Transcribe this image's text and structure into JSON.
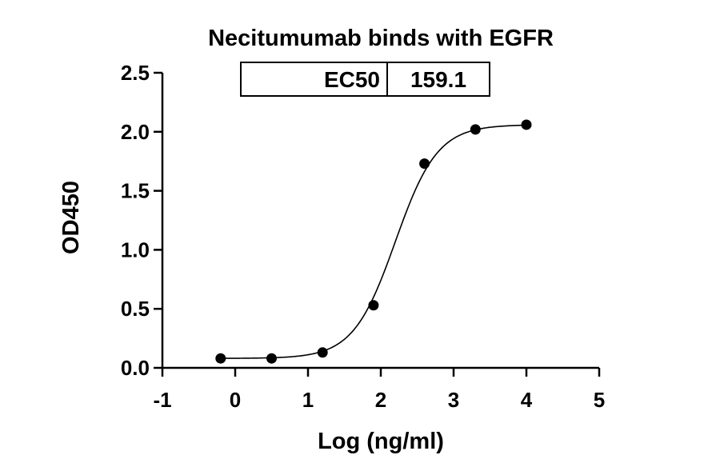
{
  "chart_data": {
    "type": "scatter",
    "title": "Necitumumab binds with EGFR",
    "xlabel": "Log (ng/ml)",
    "ylabel": "OD450",
    "xlim": [
      -1,
      5
    ],
    "ylim": [
      0,
      2.5
    ],
    "x_ticks": [
      "-1",
      "0",
      "1",
      "2",
      "3",
      "4",
      "5"
    ],
    "y_ticks": [
      "0.0",
      "0.5",
      "1.0",
      "1.5",
      "2.0",
      "2.5"
    ],
    "grid": false,
    "series": [
      {
        "x": [
          -0.2,
          0.5,
          1.2,
          1.9,
          2.6,
          3.3,
          4.0
        ],
        "y": [
          0.08,
          0.08,
          0.13,
          0.53,
          1.73,
          2.02,
          2.06
        ]
      }
    ],
    "fit_curve": {
      "model": "4PL",
      "bottom": 0.08,
      "top": 2.06,
      "logEC50": 2.2,
      "hill": 1.5
    },
    "table": {
      "label": "EC50",
      "value": "159.1"
    }
  }
}
